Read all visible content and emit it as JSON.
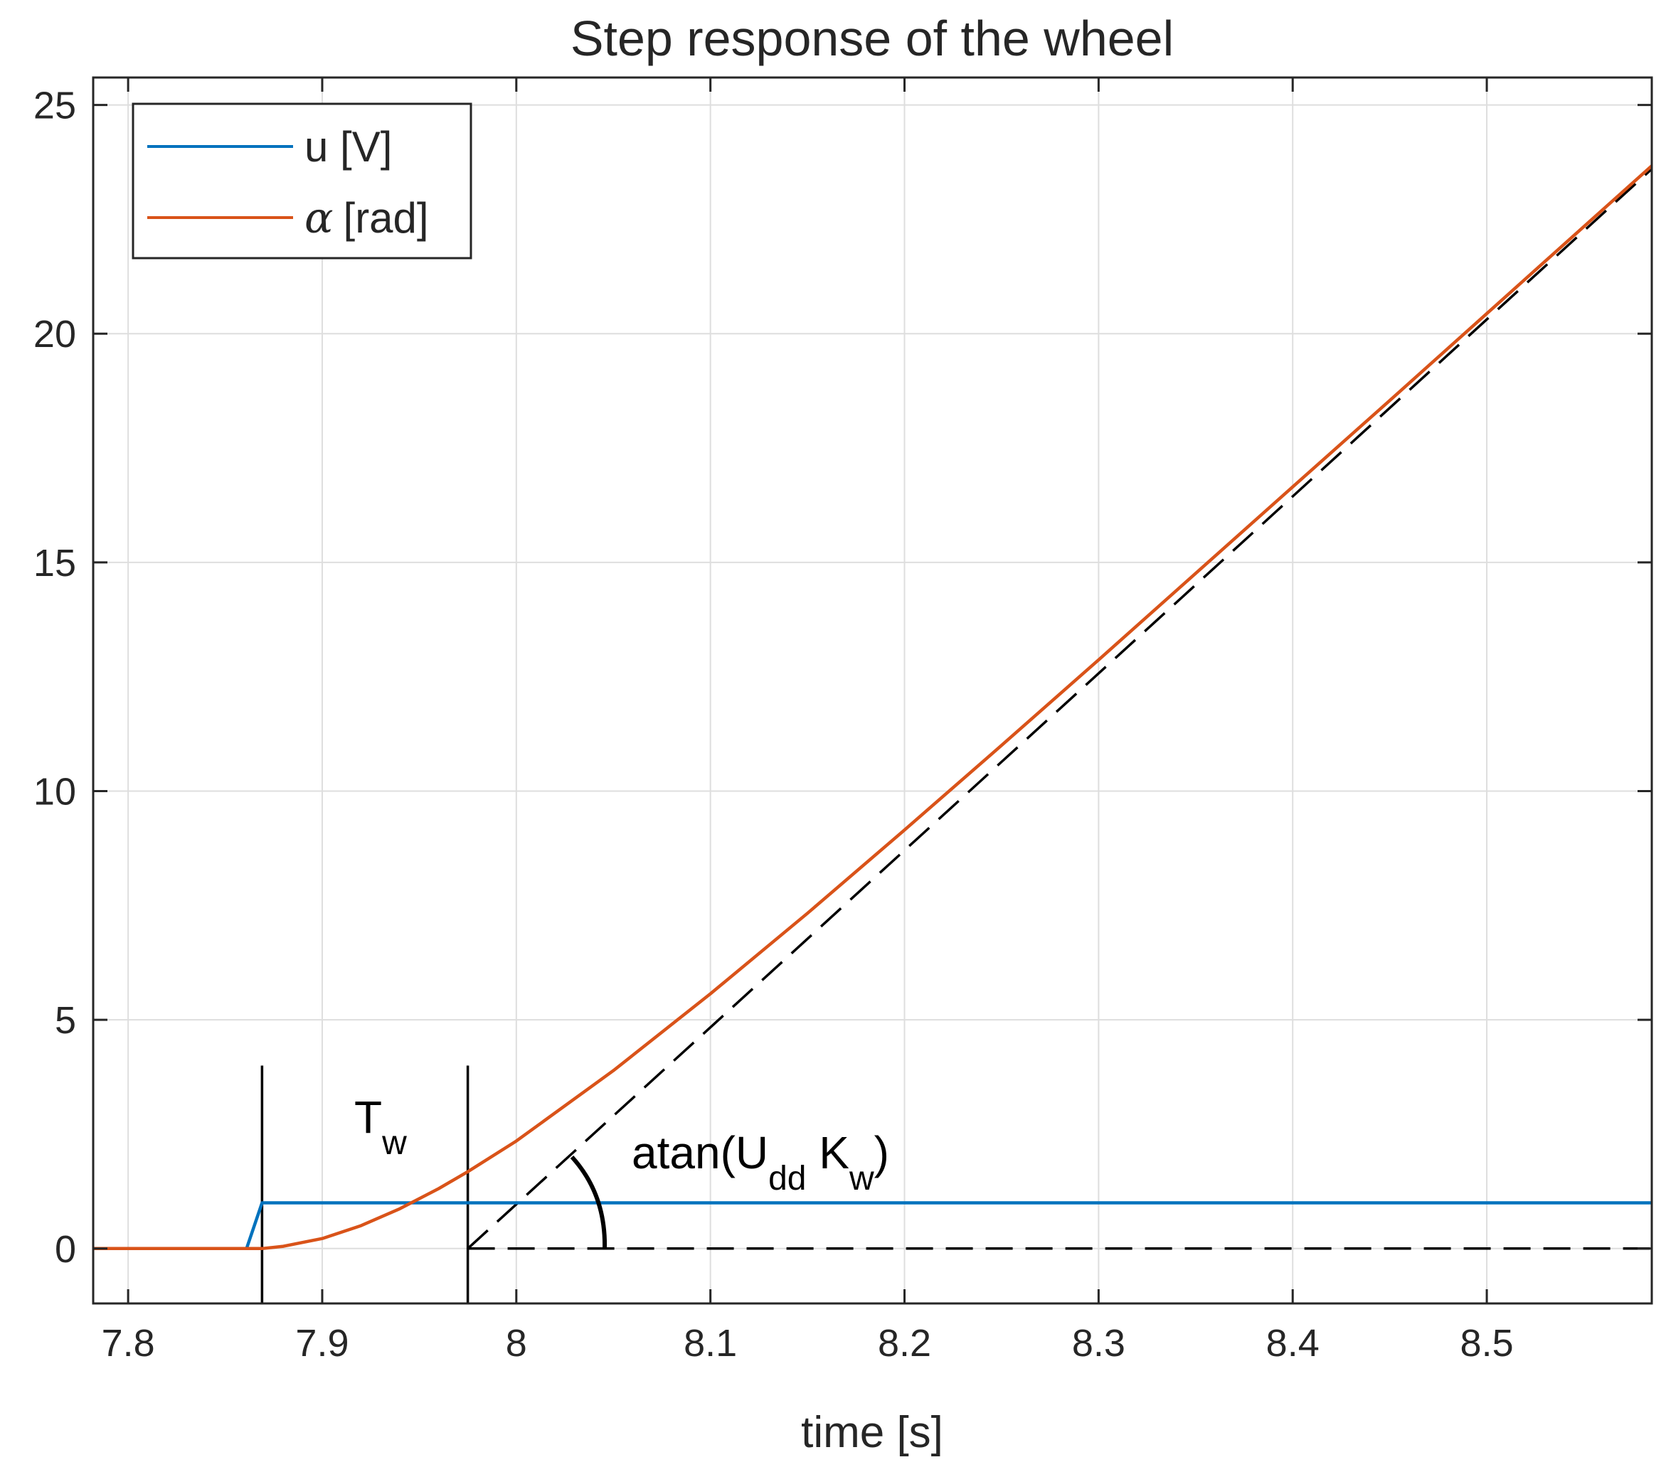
{
  "chart_data": {
    "type": "line",
    "title": "Step response of the wheel",
    "xlabel": "time [s]",
    "ylabel": "",
    "xlim": [
      7.782,
      8.585
    ],
    "ylim": [
      -1.2,
      25.6
    ],
    "grid": true,
    "xticks": [
      7.8,
      7.9,
      8.0,
      8.1,
      8.2,
      8.3,
      8.4,
      8.5
    ],
    "xtick_labels": [
      "7.8",
      "7.9",
      "8",
      "8.1",
      "8.2",
      "8.3",
      "8.4",
      "8.5"
    ],
    "yticks": [
      0,
      5,
      10,
      15,
      20,
      25
    ],
    "ytick_labels": [
      "0",
      "5",
      "10",
      "15",
      "20",
      "25"
    ],
    "legend": {
      "location": "top-left",
      "entries": [
        {
          "symbol": "α",
          "label": "[rad]",
          "color": "#D95319"
        }
      ]
    },
    "series": [
      {
        "name": "u [V]",
        "color": "#0072BD",
        "x": [
          7.782,
          7.861,
          7.869,
          8.585
        ],
        "y": [
          0,
          0,
          1,
          1
        ]
      },
      {
        "name": "α [rad]",
        "color": "#D95319",
        "x": [
          7.782,
          7.869,
          7.88,
          7.9,
          7.92,
          7.94,
          7.96,
          7.975,
          8.0,
          8.05,
          8.1,
          8.15,
          8.2,
          8.25,
          8.3,
          8.35,
          8.4,
          8.45,
          8.5,
          8.55,
          8.585
        ],
        "y": [
          0,
          0,
          0.05,
          0.22,
          0.5,
          0.87,
          1.31,
          1.68,
          2.35,
          3.89,
          5.57,
          7.33,
          9.15,
          11.0,
          12.87,
          14.76,
          16.65,
          18.54,
          20.44,
          22.34,
          23.67
        ]
      }
    ],
    "reference_lines": [
      {
        "kind": "dashed",
        "color": "#000000",
        "x": [
          7.975,
          8.585
        ],
        "y": [
          0,
          0
        ]
      },
      {
        "kind": "dashed",
        "color": "#000000",
        "x": [
          7.975,
          8.585
        ],
        "y": [
          0,
          23.6
        ]
      },
      {
        "kind": "solid",
        "color": "#000000",
        "x": [
          7.869,
          7.869
        ],
        "y": [
          -1.2,
          4
        ]
      },
      {
        "kind": "solid",
        "color": "#000000",
        "x": [
          7.975,
          7.975
        ],
        "y": [
          -1.2,
          4
        ]
      }
    ],
    "annotations": [
      {
        "base": "T",
        "sub": "w"
      },
      {
        "parts": [
          "atan(U",
          "dd",
          " K",
          "w",
          ")"
        ]
      }
    ]
  }
}
